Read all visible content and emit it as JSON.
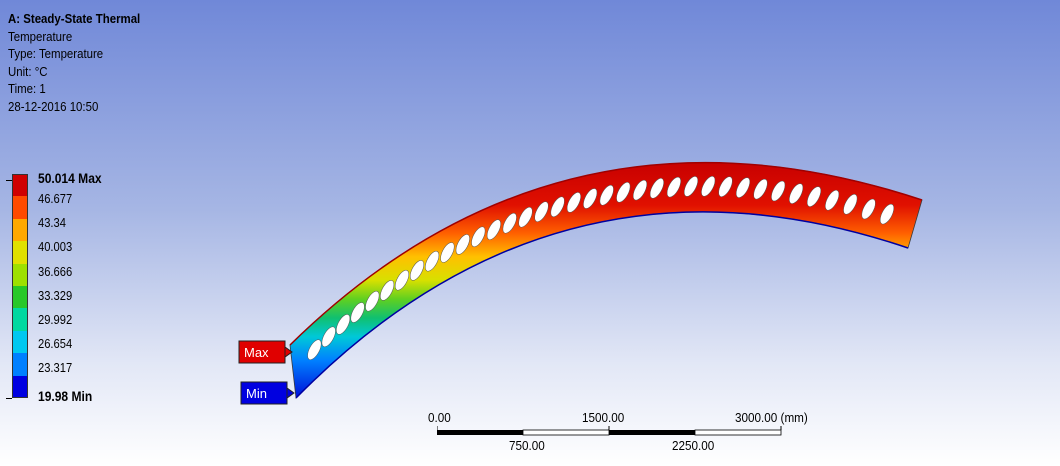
{
  "info": {
    "title": "A: Steady-State Thermal",
    "result": "Temperature",
    "type": "Type: Temperature",
    "unit": "Unit: °C",
    "time": "Time: 1",
    "date": "28-12-2016 10:50"
  },
  "legend": {
    "max_label": "50.014 Max",
    "min_label": "19.98 Min",
    "values": [
      "46.677",
      "43.34",
      "40.003",
      "36.666",
      "33.329",
      "29.992",
      "26.654",
      "23.317"
    ],
    "colors": [
      "#d00000",
      "#ff4a00",
      "#ffa800",
      "#e0e000",
      "#9ee000",
      "#28c828",
      "#00d8a0",
      "#00c8f0",
      "#0080ff",
      "#0000e0"
    ]
  },
  "probes": {
    "max": "Max",
    "min": "Min",
    "max_color": "#e00000",
    "min_color": "#0000e0"
  },
  "scale_bar": {
    "top_labels": [
      "0.00",
      "1500.00",
      "3000.00 (mm)"
    ],
    "bottom_labels": [
      "750.00",
      "2250.00"
    ]
  }
}
